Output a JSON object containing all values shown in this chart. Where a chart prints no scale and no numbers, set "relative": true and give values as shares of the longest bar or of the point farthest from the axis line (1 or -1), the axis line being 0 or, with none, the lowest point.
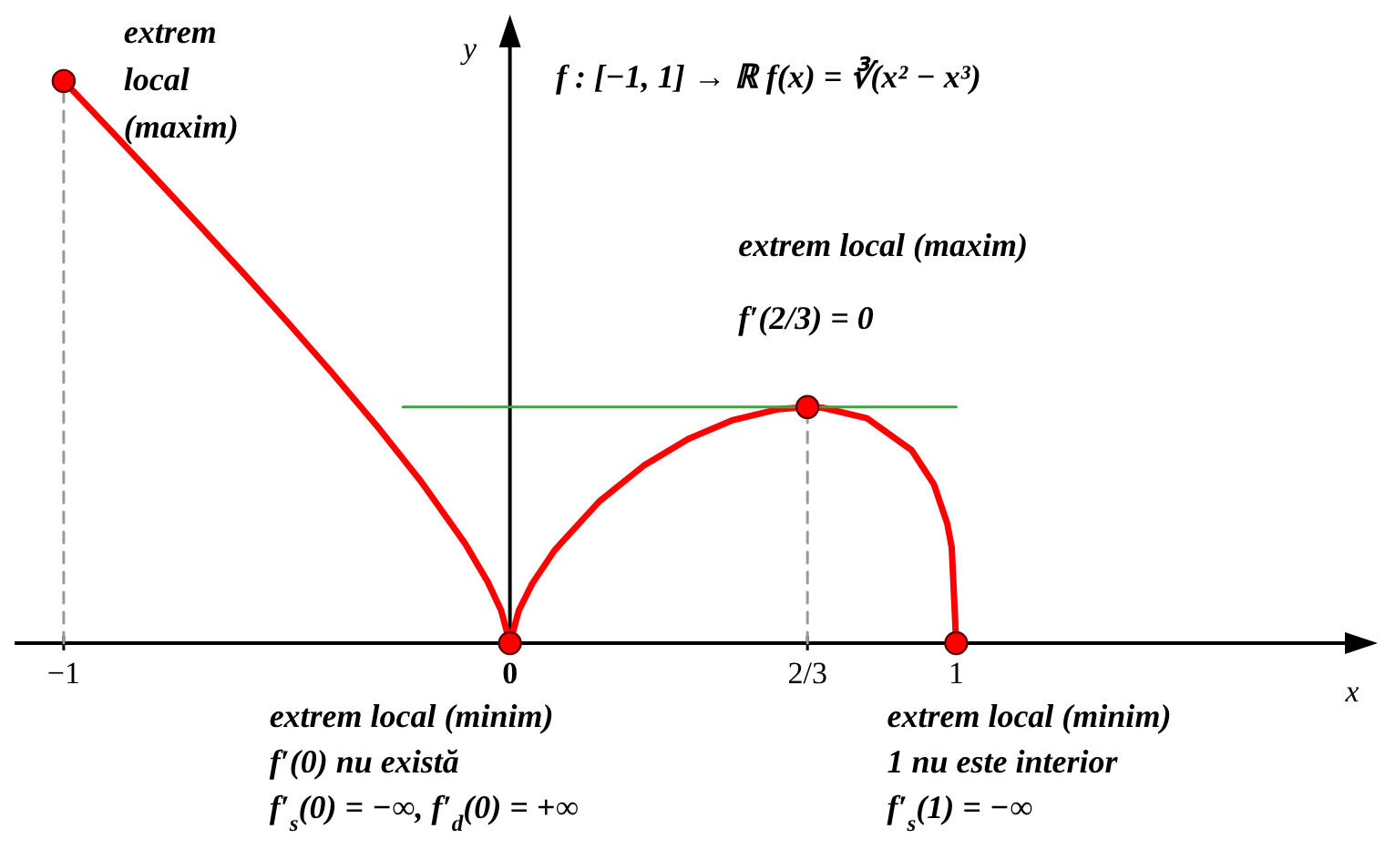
{
  "chart_data": {
    "type": "line",
    "title": "f : [−1, 1] → ℝ  f(x) = ∛(x² − x³)",
    "xlabel": "x",
    "ylabel": "y",
    "relative": true,
    "xlim": [
      -1.11,
      1.92
    ],
    "xticks": [
      {
        "value": -1,
        "label": "−1"
      },
      0,
      {
        "value": 0.6667,
        "label": "2/3"
      },
      1
    ],
    "series": [
      {
        "color": "#ff0000",
        "x": [
          -1,
          -0.9,
          -0.8,
          -0.7,
          -0.6,
          -0.5,
          -0.4,
          -0.3,
          -0.2,
          -0.1,
          -0.05,
          -0.02,
          0,
          0.02,
          0.05,
          0.1,
          0.2,
          0.3,
          0.4,
          0.5,
          0.6,
          0.6667,
          0.7,
          0.8,
          0.9,
          0.95,
          0.98,
          0.99,
          1
        ],
        "values": [
          1,
          0.9165,
          0.8321,
          0.7468,
          0.6604,
          0.5724,
          0.482,
          0.3882,
          0.2884,
          0.1765,
          0.1095,
          0.0589,
          0,
          0.0581,
          0.1059,
          0.1651,
          0.252,
          0.3158,
          0.3634,
          0.3969,
          0.416,
          0.42,
          0.4189,
          0.4,
          0.3434,
          0.2826,
          0.2126,
          0.1699,
          0
        ]
      },
      {
        "color": "#33aa33",
        "x": [
          -0.24,
          1.0
        ],
        "values": [
          0.42,
          0.42
        ]
      },
      {
        "color": "#999999",
        "line_style": "dashed",
        "x": [
          -1,
          -1
        ],
        "values": [
          0,
          1
        ]
      },
      {
        "color": "#999999",
        "line_style": "dashed",
        "x": [
          0.6667,
          0.6667
        ],
        "values": [
          0,
          0.42
        ]
      },
      {
        "type": "scatter",
        "color": "#ff0000",
        "marker": "circle",
        "x": [
          -1,
          0,
          0.6667,
          1
        ],
        "values": [
          1,
          0,
          0.42,
          0
        ]
      }
    ],
    "annotations": [
      {
        "text": "extrem\nlocal\n(maxim)",
        "x": -1,
        "y": 1
      },
      {
        "text": "extrem local (maxim)\nf′(2/3) = 0",
        "x": 0.6667,
        "y": 0.42
      },
      {
        "text": "extrem local (minim)\nf′(0) nu există\nf′$_{s}$(0) = −∞,  f′$_{d}$(0) = +∞",
        "x": 0,
        "y": 0
      },
      {
        "text": "extrem local (minim)\n1 nu este interior\nf′$_{s}$(1) = −∞",
        "x": 1,
        "y": 0
      }
    ]
  }
}
